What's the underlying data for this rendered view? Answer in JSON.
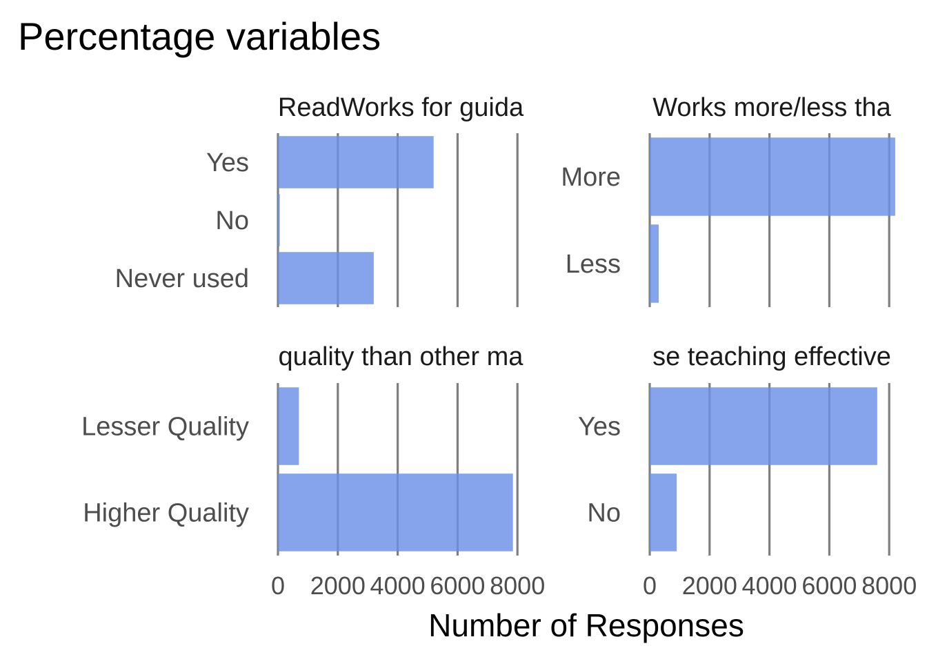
{
  "chart_data": {
    "type": "bar",
    "orientation": "horizontal",
    "title": "Percentage variables",
    "xlabel": "Number of Responses",
    "ylabel": "",
    "xlim": [
      0,
      8300
    ],
    "x_ticks": [
      0,
      2000,
      4000,
      6000,
      8000
    ],
    "x_tick_labels": [
      "0",
      "2000",
      "4000",
      "6000",
      "8000"
    ],
    "grid": "vertical major gridlines",
    "bar_color": "#6a90e8",
    "grid_color": "#7f7f7f",
    "panels": [
      {
        "strip": "ReadWorks for guida",
        "categories": [
          "Yes",
          "No",
          "Never used"
        ],
        "values": [
          5200,
          60,
          3200
        ]
      },
      {
        "strip": "Works more/less tha",
        "categories": [
          "More",
          "Less"
        ],
        "values": [
          8200,
          300
        ]
      },
      {
        "strip": "quality than other ma",
        "categories": [
          "Lesser Quality",
          "Higher Quality"
        ],
        "values": [
          700,
          7850
        ]
      },
      {
        "strip": "se teaching effective",
        "categories": [
          "Yes",
          "No"
        ],
        "values": [
          7600,
          900
        ]
      }
    ]
  }
}
